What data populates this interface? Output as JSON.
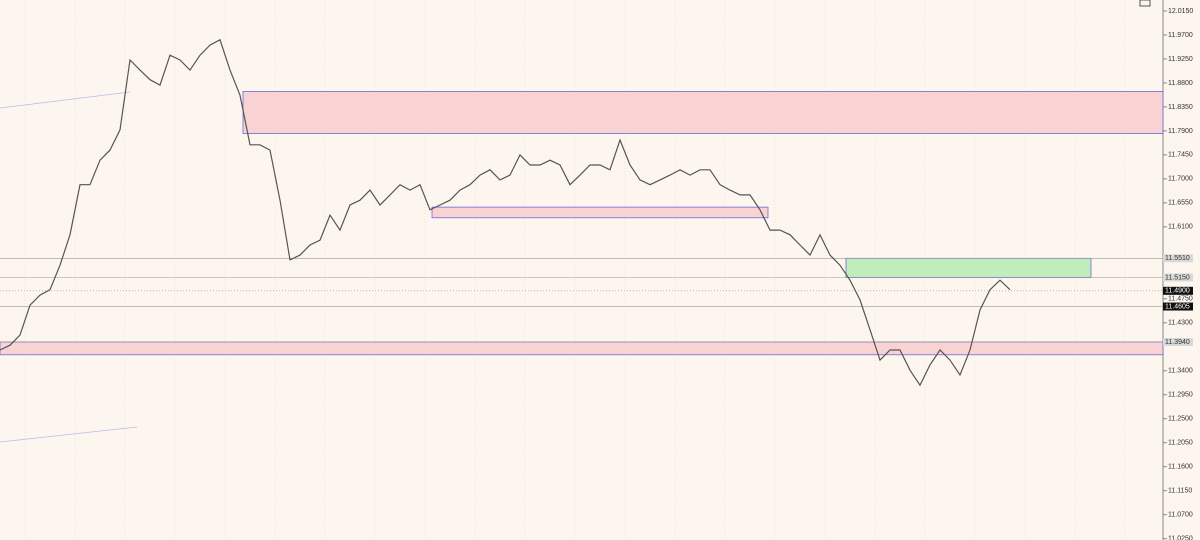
{
  "chart_data": {
    "type": "line",
    "series": [
      {
        "color": "#555555",
        "values": [
          11.379,
          11.388,
          11.407,
          11.463,
          11.482,
          11.492,
          11.538,
          11.595,
          11.689,
          11.689,
          11.735,
          11.754,
          11.792,
          11.923,
          11.904,
          11.886,
          11.876,
          11.932,
          11.923,
          11.904,
          11.932,
          11.951,
          11.961,
          11.904,
          11.857,
          11.764,
          11.764,
          11.754,
          11.66,
          11.548,
          11.557,
          11.576,
          11.585,
          11.632,
          11.604,
          11.651,
          11.66,
          11.679,
          11.651,
          11.67,
          11.689,
          11.679,
          11.689,
          11.642,
          11.651,
          11.66,
          11.679,
          11.689,
          11.707,
          11.717,
          11.698,
          11.707,
          11.745,
          11.726,
          11.726,
          11.735,
          11.726,
          11.689,
          11.707,
          11.726,
          11.726,
          11.717,
          11.773,
          11.726,
          11.698,
          11.689,
          11.698,
          11.707,
          11.717,
          11.707,
          11.717,
          11.717,
          11.689,
          11.679,
          11.67,
          11.67,
          11.642,
          11.604,
          11.604,
          11.595,
          11.576,
          11.557,
          11.595,
          11.557,
          11.538,
          11.51,
          11.473,
          11.417,
          11.36,
          11.379,
          11.379,
          11.341,
          11.313,
          11.351,
          11.379,
          11.36,
          11.332,
          11.379,
          11.454,
          11.492,
          11.51,
          11.492
        ]
      }
    ],
    "xlim": [
      0,
      116
    ],
    "ylim": [
      11.0225,
      12.0356
    ],
    "yticks": [
      {
        "value": 12.015,
        "label": "12.0150"
      },
      {
        "value": 11.97,
        "label": "11.9700"
      },
      {
        "value": 11.925,
        "label": "11.9250"
      },
      {
        "value": 11.88,
        "label": "11.8800"
      },
      {
        "value": 11.835,
        "label": "11.8350"
      },
      {
        "value": 11.79,
        "label": "11.7900"
      },
      {
        "value": 11.745,
        "label": "11.7450"
      },
      {
        "value": 11.7,
        "label": "11.7000"
      },
      {
        "value": 11.655,
        "label": "11.6550"
      },
      {
        "value": 11.61,
        "label": "11.6100"
      },
      {
        "value": 11.475,
        "label": "11.4750"
      },
      {
        "value": 11.43,
        "label": "11.4300"
      },
      {
        "value": 11.34,
        "label": "11.3400"
      },
      {
        "value": 11.295,
        "label": "11.2950"
      },
      {
        "value": 11.25,
        "label": "11.2500"
      },
      {
        "value": 11.205,
        "label": "11.2050"
      },
      {
        "value": 11.16,
        "label": "11.1600"
      },
      {
        "value": 11.115,
        "label": "11.1150"
      },
      {
        "value": 11.07,
        "label": "11.0700"
      },
      {
        "value": 11.025,
        "label": "11.0250"
      }
    ],
    "zones": [
      {
        "low": 11.785,
        "high": 11.864,
        "x": [
          24.3,
          116.3
        ],
        "color": "#f9d3d3"
      },
      {
        "low": 11.627,
        "high": 11.647,
        "x": [
          43.2,
          76.8
        ],
        "color": "#f9d3d3"
      },
      {
        "low": 11.515,
        "high": 11.551,
        "x": [
          84.6,
          109.1
        ],
        "color": "#bfeebc"
      },
      {
        "low": 11.37,
        "high": 11.394,
        "x": [
          0,
          116.3
        ],
        "color": "#f9d3d3"
      }
    ],
    "price_tags": [
      {
        "value": 11.551,
        "label": "11.5510"
      },
      {
        "value": 11.515,
        "label": "11.5150"
      },
      {
        "value": 11.49,
        "label": "11.4900"
      },
      {
        "value": 11.4605,
        "label": "11.4605"
      },
      {
        "value": 11.394,
        "label": "11.3940"
      }
    ]
  }
}
